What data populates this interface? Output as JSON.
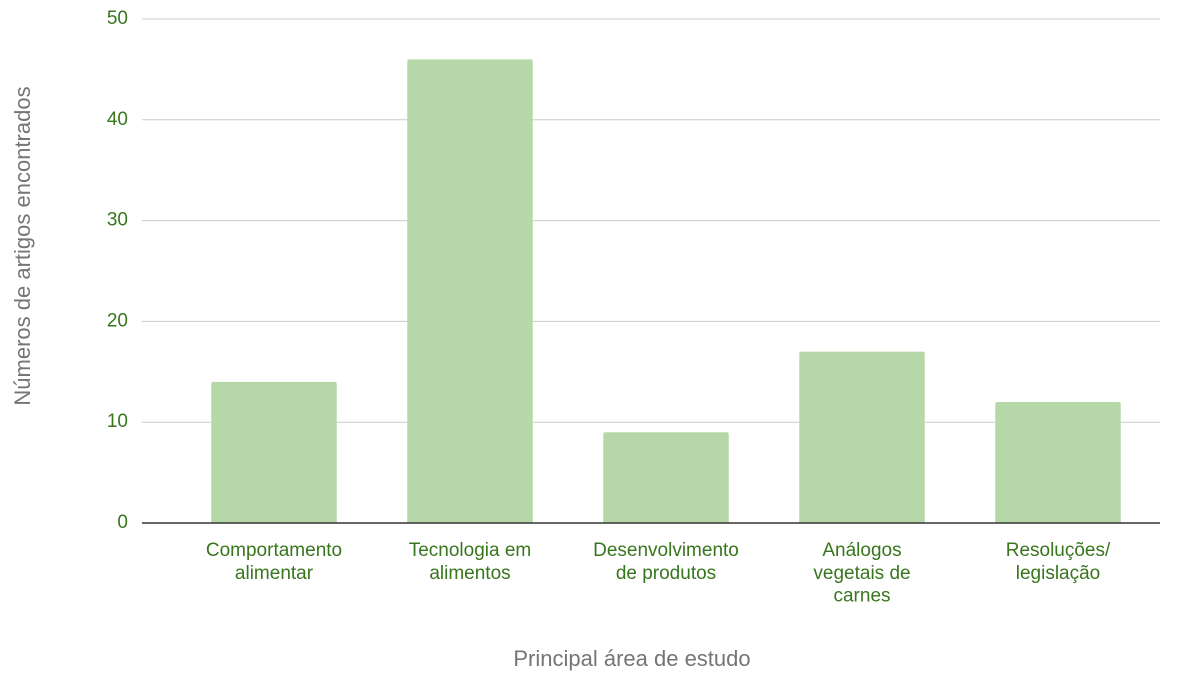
{
  "chart_data": {
    "type": "bar",
    "x_label": "Principal área de estudo",
    "y_label": "Números de artigos encontrados",
    "categories": [
      "Comportamento\nalimentar",
      "Tecnologia em\nalimentos",
      "Desenvolvimento\nde produtos",
      "Análogos\nvegetais de\ncarnes",
      "Resoluções/\nlegislação"
    ],
    "values": [
      14,
      46,
      9,
      17,
      12
    ],
    "color": "#b6d7a8",
    "ylim": [
      0,
      50
    ],
    "yticks": [
      0,
      10,
      20,
      30,
      40,
      50
    ],
    "grid": true
  }
}
